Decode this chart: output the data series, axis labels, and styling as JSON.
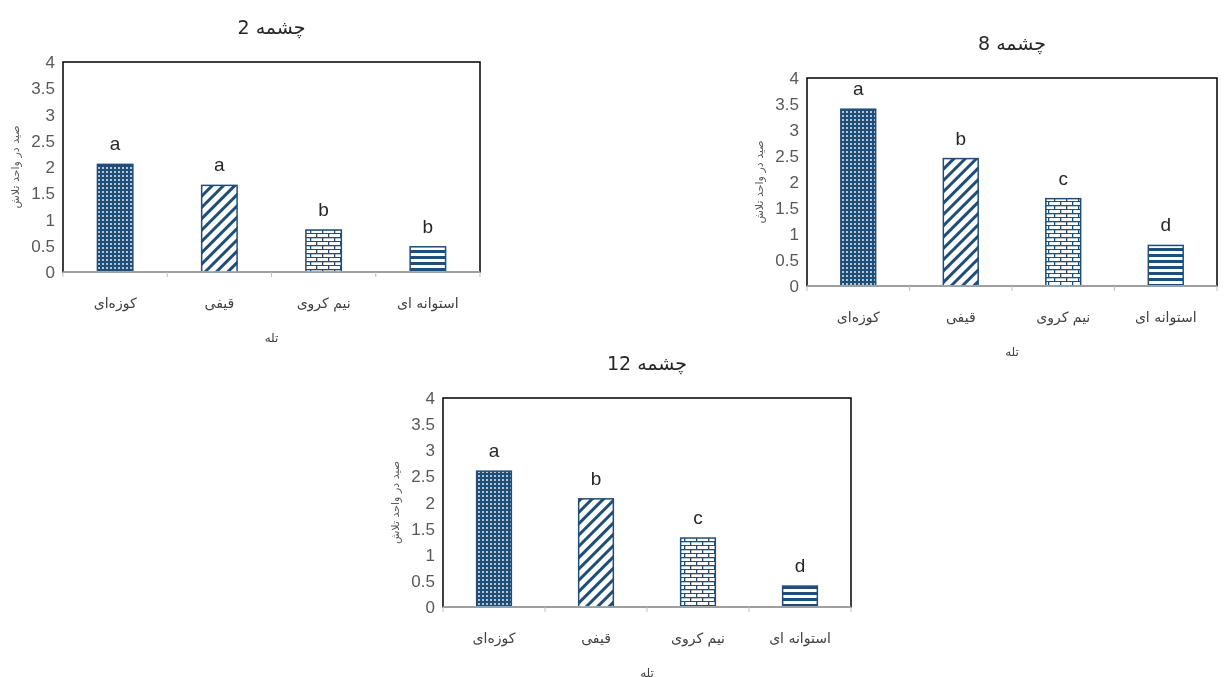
{
  "chart_data": [
    {
      "type": "bar",
      "title": "چشمه 2",
      "xlabel": "تله",
      "ylabel": "صید در واحد تلاش",
      "categories": [
        "کوزه‌ای",
        "قیفی",
        "نیم کروی",
        "استوانه ای"
      ],
      "values": [
        2.05,
        1.65,
        0.8,
        0.48
      ],
      "colors": [
        "#1f4e79",
        "#1f4e79",
        "#1f4e79",
        "#1f4e79"
      ],
      "ylim": [
        0,
        4
      ],
      "yticks": [
        0,
        0.5,
        1,
        1.5,
        2,
        2.5,
        3,
        3.5,
        4
      ],
      "annotations": [
        {
          "text": "a",
          "x": "کوزه‌ای",
          "y": 2.05
        },
        {
          "text": "a",
          "x": "قیفی",
          "y": 1.65
        },
        {
          "text": "b",
          "x": "نیم کروی",
          "y": 0.8
        },
        {
          "text": "b",
          "x": "استوانه ای",
          "y": 0.48
        }
      ]
    },
    {
      "type": "bar",
      "title": "چشمه 8",
      "xlabel": "تله",
      "ylabel": "صید در واحد تلاش",
      "categories": [
        "کوزه‌ای",
        "قیفی",
        "نیم کروی",
        "استوانه ای"
      ],
      "values": [
        3.4,
        2.45,
        1.68,
        0.78
      ],
      "colors": [
        "#1f4e79",
        "#1f4e79",
        "#1f4e79",
        "#1f4e79"
      ],
      "ylim": [
        0,
        4
      ],
      "yticks": [
        0,
        0.5,
        1,
        1.5,
        2,
        2.5,
        3,
        3.5,
        4
      ],
      "annotations": [
        {
          "text": "a",
          "x": "کوزه‌ای",
          "y": 3.4
        },
        {
          "text": "b",
          "x": "قیفی",
          "y": 2.45
        },
        {
          "text": "c",
          "x": "نیم کروی",
          "y": 1.68
        },
        {
          "text": "d",
          "x": "استوانه ای",
          "y": 0.78
        }
      ]
    },
    {
      "type": "bar",
      "title": "چشمه 12",
      "xlabel": "تله",
      "ylabel": "صید در واحد تلاش",
      "categories": [
        "کوزه‌ای",
        "قیفی",
        "نیم کروی",
        "استوانه ای"
      ],
      "values": [
        2.6,
        2.07,
        1.32,
        0.4
      ],
      "colors": [
        "#1f4e79",
        "#1f4e79",
        "#1f4e79",
        "#1f4e79"
      ],
      "ylim": [
        0,
        4
      ],
      "yticks": [
        0,
        0.5,
        1,
        1.5,
        2,
        2.5,
        3,
        3.5,
        4
      ],
      "annotations": [
        {
          "text": "a",
          "x": "کوزه‌ای",
          "y": 2.6
        },
        {
          "text": "b",
          "x": "قیفی",
          "y": 2.07
        },
        {
          "text": "c",
          "x": "نیم کروی",
          "y": 1.32
        },
        {
          "text": "d",
          "x": "استوانه ای",
          "y": 0.4
        }
      ]
    }
  ]
}
